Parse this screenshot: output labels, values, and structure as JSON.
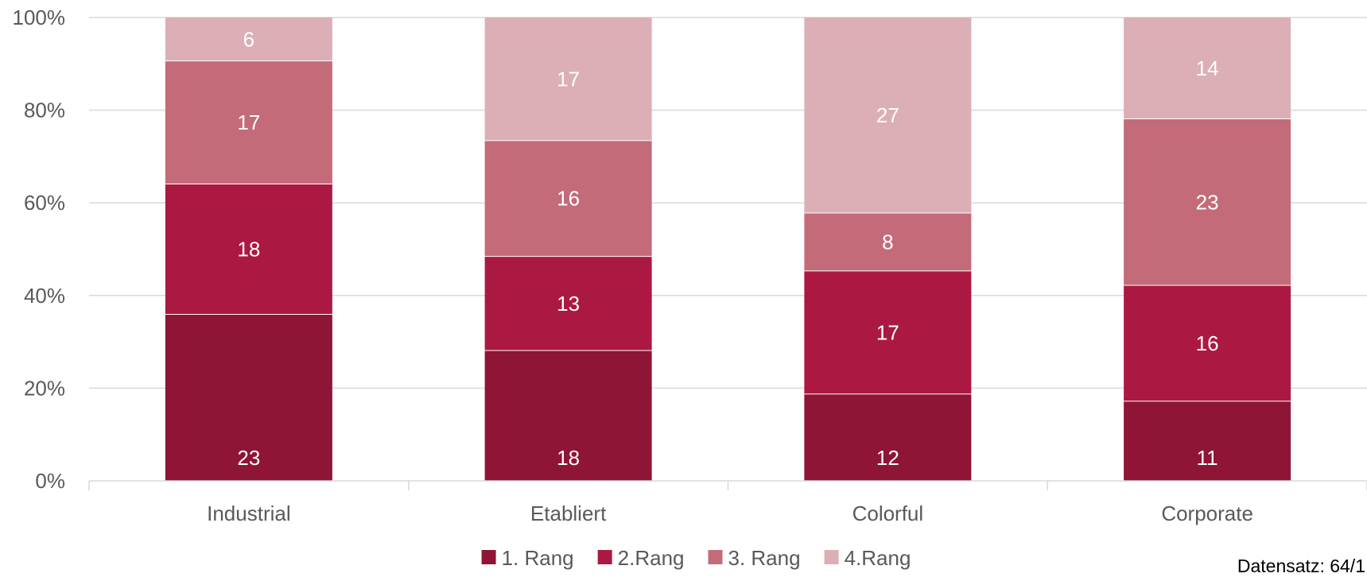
{
  "chart_data": {
    "type": "bar",
    "stacked": true,
    "normalized": true,
    "categories": [
      "Industrial",
      "Etabliert",
      "Colorful",
      "Corporate"
    ],
    "series": [
      {
        "name": "1. Rang",
        "values": [
          23,
          18,
          12,
          11
        ],
        "color": "#8e1536"
      },
      {
        "name": "2.Rang",
        "values": [
          18,
          13,
          17,
          16
        ],
        "color": "#ab1942"
      },
      {
        "name": "3. Rang",
        "values": [
          17,
          16,
          8,
          23
        ],
        "color": "#c46b7a"
      },
      {
        "name": "4.Rang",
        "values": [
          6,
          17,
          27,
          14
        ],
        "color": "#dbafb5"
      }
    ],
    "y_ticks": [
      "0%",
      "20%",
      "40%",
      "60%",
      "80%",
      "100%"
    ],
    "ylim": [
      0,
      100
    ],
    "grid": true,
    "legend_position": "bottom-center"
  },
  "footnote": "Datensatz: 64/1"
}
